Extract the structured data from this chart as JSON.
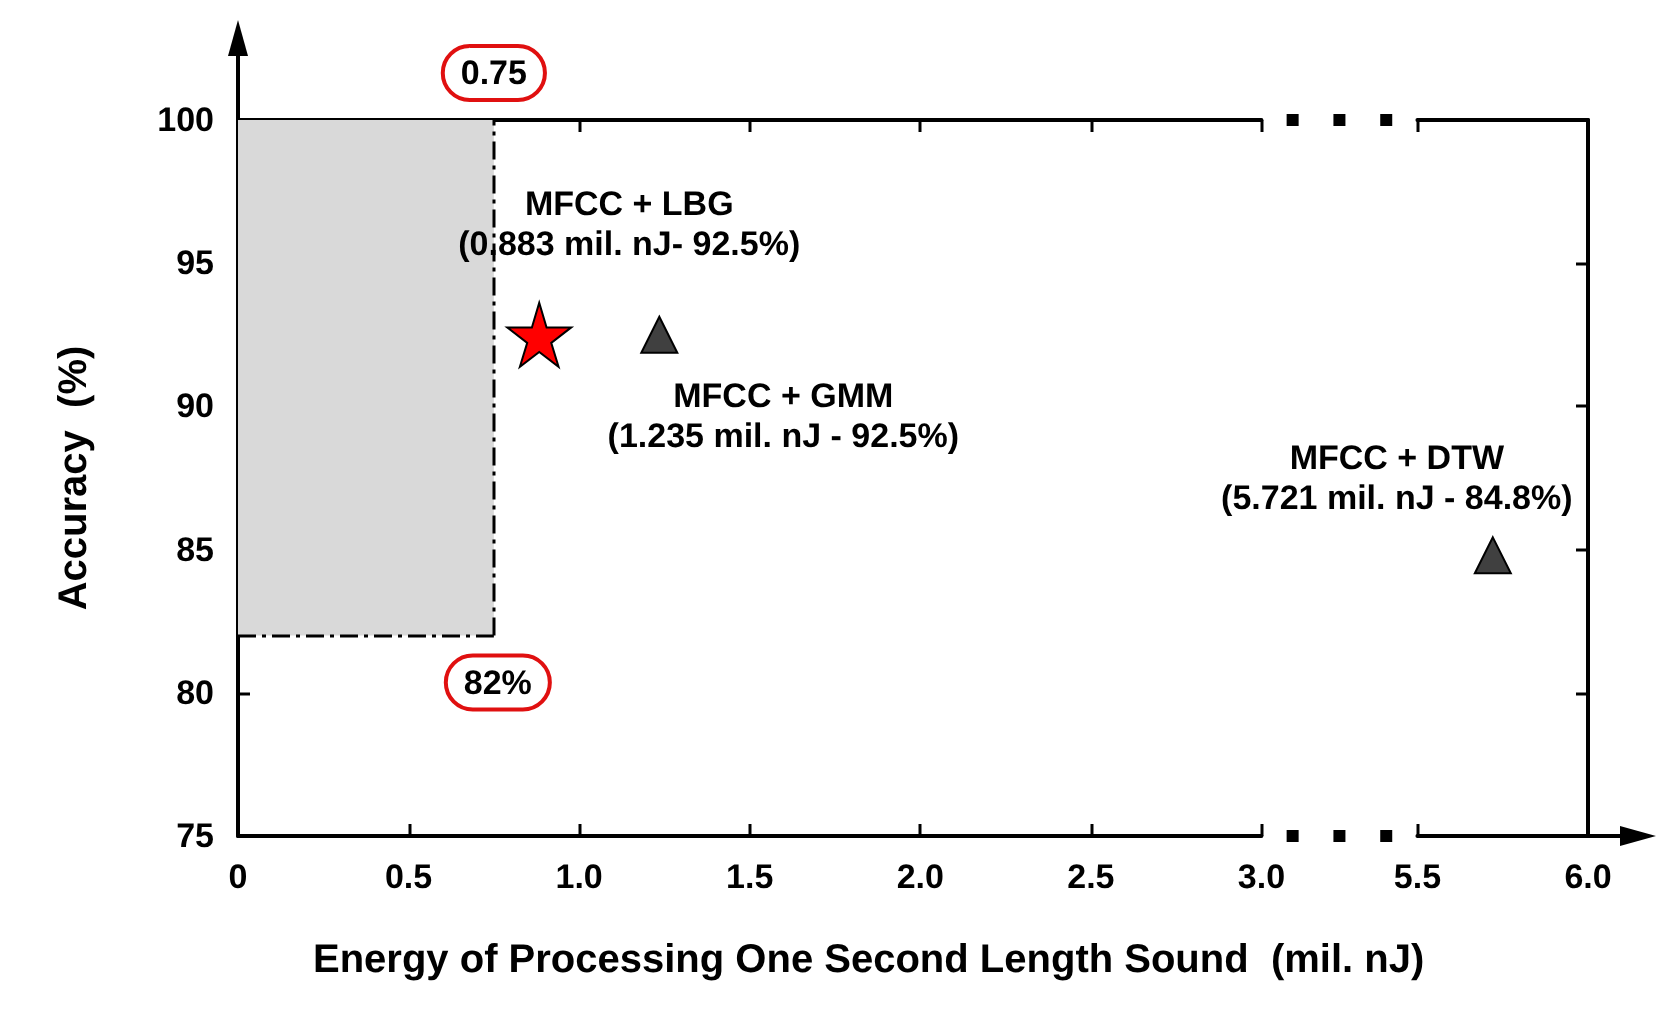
{
  "chart_data": [
    {
      "type": "scatter",
      "xlabel": "Energy of Processing One Second Length Sound  (mil. nJ)",
      "ylabel": "Accuracy  (%)",
      "xlim": [
        0,
        3.0
      ],
      "ylim": [
        75,
        100
      ],
      "xticks": [
        0,
        0.5,
        {
          "value": 1,
          "label": "1.0"
        },
        1.5,
        {
          "value": 2,
          "label": "2.0"
        },
        2.5,
        {
          "value": 3,
          "label": "3.0"
        }
      ],
      "yticks": [
        75,
        80,
        85,
        90,
        95,
        100
      ],
      "series": [
        {
          "name": "MFCC + LBG",
          "color": "#ff0000",
          "marker": "star",
          "x": [
            0.883
          ],
          "values": [
            92.5
          ],
          "value_labels": [
            "(0.883 mil. nJ- 92.5%)"
          ]
        },
        {
          "name": "MFCC + GMM",
          "color": "#404040",
          "marker": "triangle",
          "x": [
            1.235
          ],
          "values": [
            92.5
          ],
          "value_labels": [
            "(1.235 mil. nJ - 92.5%)"
          ]
        }
      ],
      "ref_lines": [
        {
          "axis": "x",
          "value": 0.75,
          "label": "0.75",
          "line_style": "dashed"
        },
        {
          "axis": "y",
          "value": 82,
          "label": "82%",
          "line_style": "dashed"
        }
      ],
      "bands": [
        {
          "axis": "x",
          "from": 0,
          "to": 0.75,
          "color": "#d9d9d9"
        }
      ]
    },
    {
      "type": "scatter",
      "xlim": [
        5.5,
        6.0
      ],
      "ylim": [
        75,
        100
      ],
      "xticks": [
        5.5,
        {
          "value": 6,
          "label": "6.0"
        }
      ],
      "yticks": [
        {
          "value": 75,
          "label": null
        },
        {
          "value": 80,
          "label": null
        },
        {
          "value": 85,
          "label": null
        },
        {
          "value": 90,
          "label": null
        },
        {
          "value": 95,
          "label": null
        },
        {
          "value": 100,
          "label": null
        }
      ],
      "tick_labels": "x",
      "series": [
        {
          "name": "MFCC + DTW",
          "color": "#404040",
          "marker": "triangle",
          "x": [
            5.721
          ],
          "values": [
            84.8
          ],
          "value_labels": [
            "(5.721 mil. nJ - 84.8%)"
          ]
        }
      ]
    }
  ]
}
